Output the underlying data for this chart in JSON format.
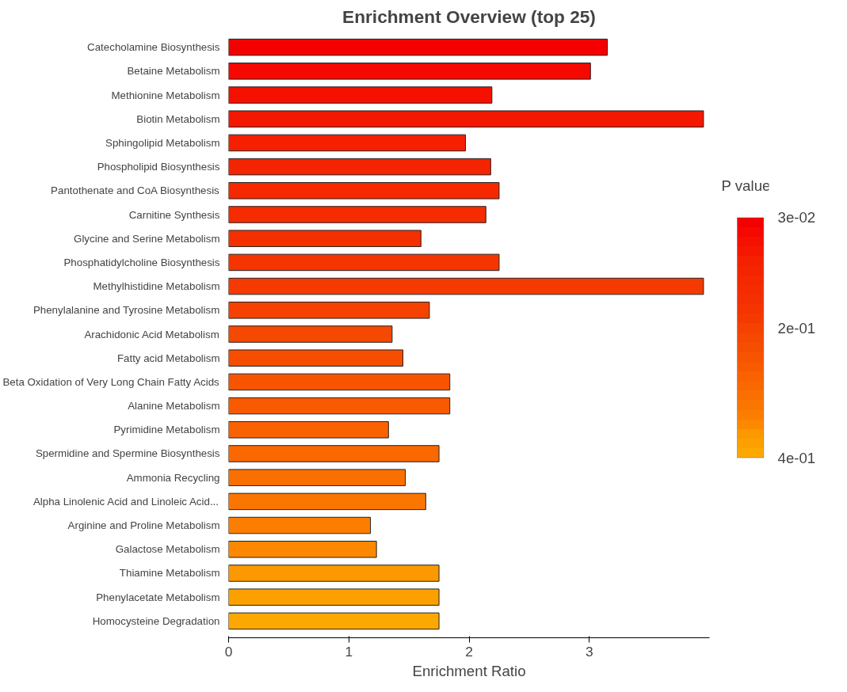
{
  "chart_data": {
    "type": "bar",
    "orientation": "horizontal",
    "title": "Enrichment Overview (top 25)",
    "xlabel": "Enrichment Ratio",
    "clabel": "P value",
    "categories": [
      "Catecholamine Biosynthesis",
      "Betaine Metabolism",
      "Methionine Metabolism",
      "Biotin Metabolism",
      "Sphingolipid Metabolism",
      "Phospholipid Biosynthesis",
      "Pantothenate and CoA Biosynthesis",
      "Carnitine Synthesis",
      "Glycine and Serine Metabolism",
      "Phosphatidylcholine Biosynthesis",
      "Methylhistidine Metabolism",
      "Phenylalanine and Tyrosine Metabolism",
      "Arachidonic Acid Metabolism",
      "Fatty acid Metabolism",
      "Beta Oxidation of Very Long Chain Fatty Acids",
      "Alanine Metabolism",
      "Pyrimidine Metabolism",
      "Spermidine and Spermine Biosynthesis",
      "Ammonia Recycling",
      "Alpha Linolenic Acid and Linoleic Acid...",
      "Arginine and Proline Metabolism",
      "Galactose Metabolism",
      "Thiamine Metabolism",
      "Phenylacetate Metabolism",
      "Homocysteine Degradation"
    ],
    "values": [
      3.15,
      3.01,
      2.19,
      3.95,
      1.97,
      2.18,
      2.25,
      2.14,
      1.6,
      2.25,
      3.95,
      1.67,
      1.36,
      1.45,
      1.84,
      1.84,
      1.33,
      1.75,
      1.47,
      1.64,
      1.18,
      1.23,
      1.75,
      1.75,
      1.75
    ],
    "colors": [
      "#f50000",
      "#f50800",
      "#f51000",
      "#f51800",
      "#f52000",
      "#f52400",
      "#f52800",
      "#f52c00",
      "#f53000",
      "#f53400",
      "#f53a00",
      "#f54200",
      "#f54800",
      "#f54e00",
      "#f85400",
      "#f85a00",
      "#fa6200",
      "#fa6800",
      "#fa7000",
      "#fa7600",
      "#fc7e00",
      "#fc8800",
      "#fc9800",
      "#fca000",
      "#fca800"
    ],
    "xlim": [
      0,
      4
    ],
    "xticks": [
      0,
      1,
      2,
      3
    ],
    "clim": [
      0.03,
      0.4
    ],
    "cticks": [
      {
        "value": 0.03,
        "label": "3e-02"
      },
      {
        "value": 0.2,
        "label": "2e-01"
      },
      {
        "value": 0.4,
        "label": "4e-01"
      }
    ],
    "grid": false
  }
}
